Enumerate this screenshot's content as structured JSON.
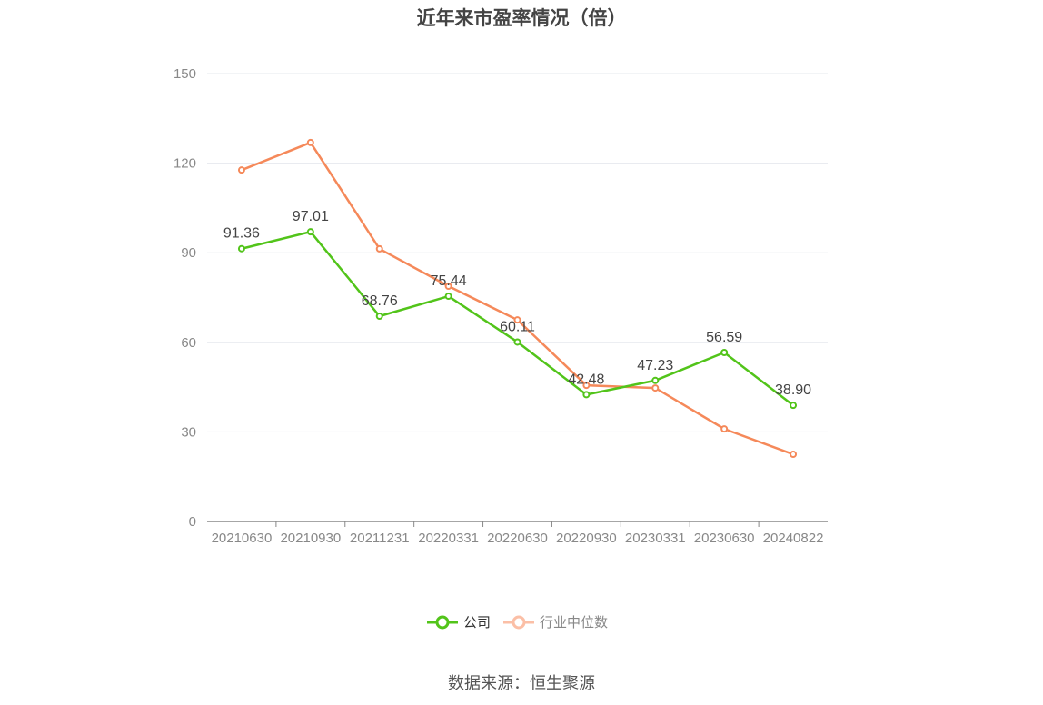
{
  "chart_data": {
    "type": "line",
    "title": "近年来市盈率情况（倍）",
    "categories": [
      "20210630",
      "20210930",
      "20211231",
      "20220331",
      "20220630",
      "20220930",
      "20230331",
      "20230630",
      "20240822"
    ],
    "ylim": [
      0,
      150
    ],
    "yticks": [
      0,
      30,
      60,
      90,
      120,
      150
    ],
    "grid": true,
    "legend_placement": "bottom",
    "series": [
      {
        "name": "公司",
        "color": "#52c41a",
        "values": [
          91.36,
          97.01,
          68.76,
          75.44,
          60.11,
          42.48,
          47.23,
          56.59,
          38.9
        ],
        "labels": [
          "91.36",
          "97.01",
          "68.76",
          "75.44",
          "60.11",
          "42.48",
          "47.23",
          "56.59",
          "38.90"
        ]
      },
      {
        "name": "行业中位数",
        "color": "#f5895a",
        "values": [
          117.7,
          126.9,
          91.3,
          78.8,
          67.5,
          45.6,
          44.7,
          31.0,
          22.5
        ]
      }
    ]
  },
  "source": "数据来源：恒生聚源"
}
